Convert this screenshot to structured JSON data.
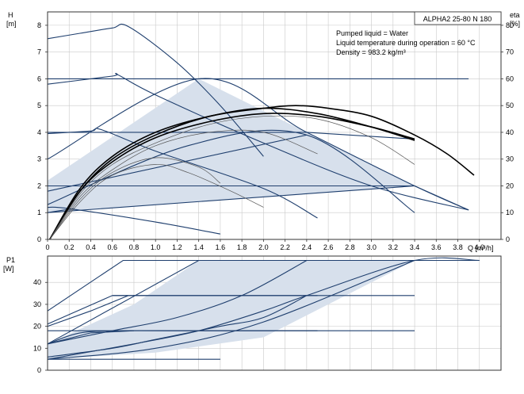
{
  "chart_data": [
    {
      "type": "line",
      "title": "ALPHA2 25-80 N 180",
      "notes": [
        "Pumped liquid = Water",
        "Liquid temperature during operation = 60 °C",
        "Density = 983.2 kg/m³"
      ],
      "xlabel": "Q [m³/h]",
      "ylabel": [
        "H",
        "[m]"
      ],
      "y2label": [
        "eta",
        "[%]"
      ],
      "xlim": [
        0,
        4.2
      ],
      "ylim": [
        0,
        8.5
      ],
      "y2lim": [
        0,
        85
      ],
      "x_ticks": [
        "0",
        "0.2",
        "0.4",
        "0.6",
        "0.8",
        "1.0",
        "1.2",
        "1.4",
        "1.6",
        "1.8",
        "2.0",
        "2.2",
        "2.4",
        "2.6",
        "2.8",
        "3.0",
        "3.2",
        "3.4",
        "3.6",
        "3.8",
        "4.0"
      ],
      "y_ticks": [
        "0",
        "1",
        "2",
        "3",
        "4",
        "5",
        "6",
        "7",
        "8"
      ],
      "y2_ticks": [
        "0",
        "10",
        "20",
        "30",
        "40",
        "50",
        "60",
        "70",
        "80"
      ],
      "grid": true,
      "colors": {
        "curve": "#1f3f6e",
        "band": "#d7e0ec",
        "eta_curve": "#000000",
        "eta_thin": "#555555"
      },
      "band": {
        "x": [
          0,
          1.4,
          3.4,
          3.4,
          0
        ],
        "y": [
          2.2,
          6.0,
          2.0,
          2.0,
          1.0
        ]
      },
      "series": [
        {
          "kind": "curve",
          "x": [
            0,
            0.3,
            0.6,
            0.75,
            1.2,
            1.6,
            2.0
          ],
          "y": [
            7.5,
            7.7,
            7.9,
            7.95,
            6.6,
            5.0,
            3.1
          ]
        },
        {
          "kind": "curve",
          "x": [
            0,
            0.6,
            0.65,
            1.0,
            2.0,
            3.0,
            3.9
          ],
          "y": [
            5.8,
            6.1,
            6.15,
            5.4,
            3.6,
            2.0,
            1.1
          ]
        },
        {
          "kind": "curve",
          "x": [
            0,
            3.4,
            3.9
          ],
          "y": [
            6.0,
            6.0,
            6.0
          ]
        },
        {
          "kind": "curve",
          "x": [
            0,
            1.4,
            2.4,
            3.4,
            3.9
          ],
          "y": [
            3.0,
            6.0,
            4.0,
            2.0,
            1.1
          ]
        },
        {
          "kind": "curve",
          "x": [
            0,
            2.4,
            3.4
          ],
          "y": [
            4.0,
            4.0,
            3.75
          ]
        },
        {
          "kind": "curve",
          "x": [
            0,
            0.4,
            0.5,
            1.0,
            2.0,
            2.5
          ],
          "y": [
            3.95,
            4.05,
            4.1,
            3.3,
            1.9,
            0.8
          ]
        },
        {
          "kind": "curve",
          "x": [
            0,
            3.4,
            3.9
          ],
          "y": [
            2.0,
            2.0,
            1.1
          ]
        },
        {
          "kind": "curve",
          "x": [
            0,
            2.4
          ],
          "y": [
            1.8,
            3.9
          ]
        },
        {
          "kind": "curve",
          "x": [
            0,
            3.4
          ],
          "y": [
            1.0,
            2.0
          ]
        },
        {
          "kind": "curve",
          "x": [
            0,
            0.2,
            1.0,
            1.6
          ],
          "y": [
            1.2,
            1.15,
            0.65,
            0.2
          ]
        },
        {
          "kind": "curve",
          "x": [
            0,
            1.3,
            2.4,
            3.4
          ],
          "y": [
            1.3,
            3.5,
            3.9,
            1.0
          ]
        },
        {
          "kind": "curve",
          "x": [
            0,
            0.15,
            0.25
          ],
          "y": [
            1.0,
            1.1,
            1.15
          ]
        },
        {
          "kind": "eta_thick",
          "x": [
            0.02,
            0.3,
            0.6,
            1.0,
            1.5,
            2.0,
            2.3,
            2.6,
            3.0,
            3.4,
            3.7,
            3.95
          ],
          "y": [
            0,
            1.8,
            3.0,
            3.9,
            4.6,
            4.9,
            5.0,
            4.9,
            4.6,
            3.9,
            3.2,
            2.4
          ]
        },
        {
          "kind": "eta_thick",
          "x": [
            0.02,
            0.3,
            0.6,
            1.0,
            1.5,
            2.0,
            2.5,
            3.0,
            3.4
          ],
          "y": [
            0,
            1.9,
            3.1,
            4.0,
            4.6,
            4.9,
            4.7,
            4.2,
            3.7
          ]
        },
        {
          "kind": "eta_thick",
          "x": [
            0.02,
            0.3,
            0.6,
            1.0,
            1.5,
            2.0,
            2.5,
            3.0,
            3.4
          ],
          "y": [
            0,
            1.8,
            2.9,
            3.8,
            4.4,
            4.7,
            4.6,
            4.2,
            3.75
          ]
        },
        {
          "kind": "eta_thin",
          "x": [
            0.02,
            0.3,
            0.6,
            1.0,
            1.5,
            2.0,
            2.5,
            3.0,
            3.4
          ],
          "y": [
            0,
            1.7,
            2.8,
            3.6,
            4.3,
            4.6,
            4.5,
            3.8,
            2.8
          ]
        },
        {
          "kind": "eta_thin",
          "x": [
            0.02,
            0.3,
            0.6,
            1.0,
            1.5,
            2.0,
            2.5
          ],
          "y": [
            0,
            1.6,
            2.6,
            3.5,
            4.0,
            4.0,
            3.2
          ]
        },
        {
          "kind": "eta_thin",
          "x": [
            0.02,
            0.3,
            0.6,
            1.0,
            1.4,
            1.6
          ],
          "y": [
            0,
            1.5,
            2.5,
            3.05,
            2.7,
            2.1
          ]
        },
        {
          "kind": "eta_thin",
          "x": [
            0.02,
            0.3,
            0.6,
            1.0,
            1.3,
            1.7,
            2.0
          ],
          "y": [
            0,
            1.4,
            2.4,
            2.8,
            2.5,
            1.8,
            1.2
          ]
        }
      ]
    },
    {
      "type": "line",
      "ylabel": [
        "P1",
        "[W]"
      ],
      "xlim": [
        0,
        4.2
      ],
      "ylim": [
        0,
        52
      ],
      "y_ticks": [
        "0",
        "10",
        "20",
        "30",
        "40"
      ],
      "grid": true,
      "colors": {
        "curve": "#1f3f6e",
        "band": "#d7e0ec"
      },
      "band": {
        "x": [
          0,
          0.8,
          1.4,
          3.4,
          3.4,
          2.0,
          1.0,
          0
        ],
        "y": [
          12,
          30,
          50,
          50,
          50,
          15,
          8,
          5
        ]
      },
      "series": [
        {
          "kind": "curve",
          "x": [
            0,
            1.4,
            4.0
          ],
          "y": [
            12,
            50,
            50
          ]
        },
        {
          "kind": "curve",
          "x": [
            0,
            0.8,
            1.4,
            2.0,
            2.4,
            3.4,
            4.0
          ],
          "y": [
            5,
            12,
            18,
            27,
            34,
            50,
            50
          ]
        },
        {
          "kind": "curve",
          "x": [
            0,
            0.6,
            1.0,
            1.6,
            2.0,
            2.4
          ],
          "y": [
            6,
            10,
            14,
            20,
            24,
            34
          ]
        },
        {
          "kind": "curve",
          "x": [
            0,
            1.0,
            2.0,
            3.4
          ],
          "y": [
            5,
            10,
            22,
            50
          ]
        },
        {
          "kind": "curve",
          "x": [
            0,
            0.6,
            1.2,
            1.8,
            2.4
          ],
          "y": [
            12,
            18,
            24,
            34,
            50
          ]
        },
        {
          "kind": "curve",
          "x": [
            0,
            0.4,
            0.8
          ],
          "y": [
            12,
            17,
            18
          ]
        },
        {
          "kind": "curve",
          "x": [
            0,
            3.4
          ],
          "y": [
            18,
            18
          ]
        },
        {
          "kind": "curve",
          "x": [
            0.6,
            3.4
          ],
          "y": [
            34,
            34
          ]
        },
        {
          "kind": "curve",
          "x": [
            0,
            0.4,
            0.75
          ],
          "y": [
            20,
            27,
            34
          ]
        },
        {
          "kind": "curve",
          "x": [
            0,
            0.7,
            1.6
          ],
          "y": [
            27,
            50,
            50
          ]
        },
        {
          "kind": "curve",
          "x": [
            0,
            0.6,
            2.5
          ],
          "y": [
            21,
            34,
            34
          ]
        },
        {
          "kind": "curve",
          "x": [
            0,
            1.6
          ],
          "y": [
            5,
            5
          ]
        },
        {
          "kind": "curve",
          "x": [
            0,
            0.3,
            0.7,
            1.2,
            2.0,
            2.5
          ],
          "y": [
            12,
            17,
            18,
            18,
            18,
            18
          ]
        }
      ]
    }
  ]
}
